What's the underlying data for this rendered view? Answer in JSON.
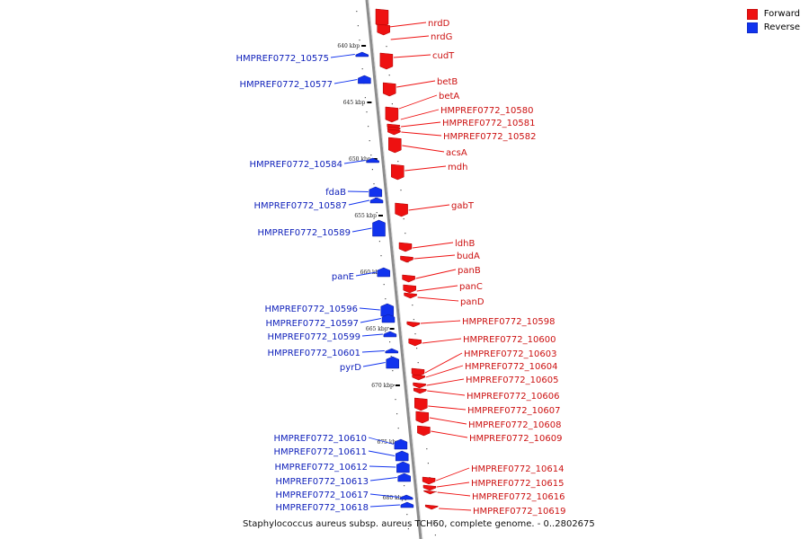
{
  "colors": {
    "forward": "#ee1111",
    "reverse": "#1133ee",
    "backbone": "#909090"
  },
  "legend": [
    {
      "label": "Forward",
      "color": "#ee1111"
    },
    {
      "label": "Reverse",
      "color": "#1133ee"
    }
  ],
  "caption": "Staphylococcus aureus subsp. aureus TCH60, complete genome. - 0..2802675",
  "ruler": [
    "640 kbp",
    "645 kbp",
    "650 kbp",
    "655 kbp",
    "660 kbp",
    "665 kbp",
    "670 kbp",
    "675 kbp",
    "680 kbp"
  ],
  "forward_genes": [
    "nrdD",
    "nrdG",
    "cudT",
    "betB",
    "betA",
    "HMPREF0772_10580",
    "HMPREF0772_10581",
    "HMPREF0772_10582",
    "acsA",
    "mdh",
    "gabT",
    "ldhB",
    "budA",
    "panB",
    "panC",
    "panD",
    "HMPREF0772_10598",
    "HMPREF0772_10600",
    "HMPREF0772_10603",
    "HMPREF0772_10604",
    "HMPREF0772_10605",
    "HMPREF0772_10606",
    "HMPREF0772_10607",
    "HMPREF0772_10608",
    "HMPREF0772_10609",
    "HMPREF0772_10614",
    "HMPREF0772_10615",
    "HMPREF0772_10616",
    "HMPREF0772_10619"
  ],
  "reverse_genes": [
    "HMPREF0772_10575",
    "HMPREF0772_10577",
    "HMPREF0772_10584",
    "fdaB",
    "HMPREF0772_10587",
    "HMPREF0772_10589",
    "panE",
    "HMPREF0772_10596",
    "HMPREF0772_10597",
    "HMPREF0772_10599",
    "HMPREF0772_10601",
    "pyrD",
    "HMPREF0772_10610",
    "HMPREF0772_10611",
    "HMPREF0772_10612",
    "HMPREF0772_10613",
    "HMPREF0772_10617",
    "HMPREF0772_10618"
  ]
}
